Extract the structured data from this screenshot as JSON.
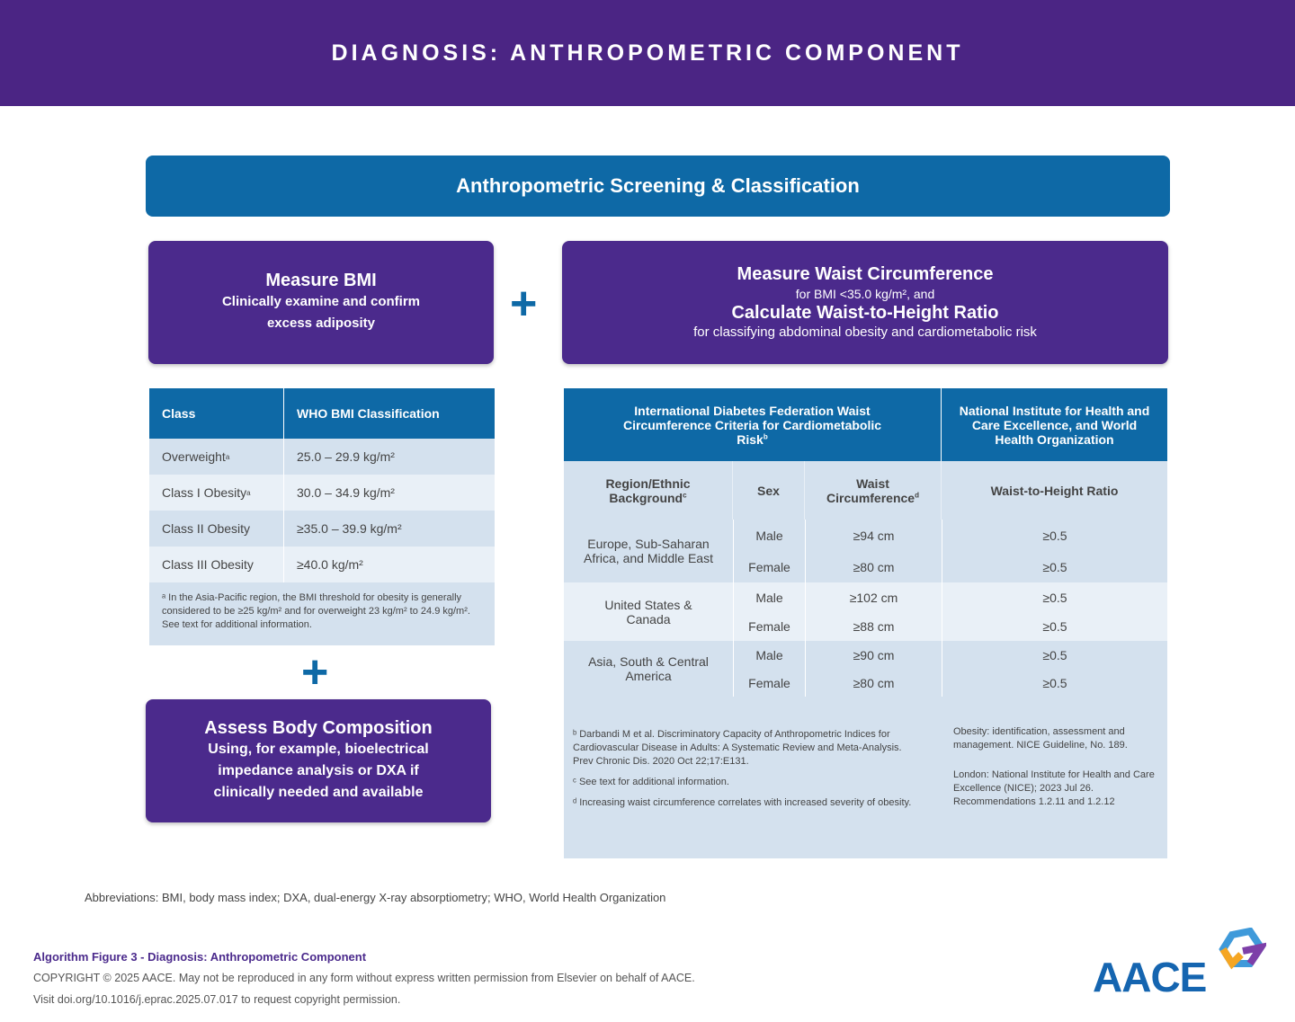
{
  "header": {
    "title": "DIAGNOSIS: ANTHROPOMETRIC COMPONENT"
  },
  "screening": {
    "title": "Anthropometric Screening & Classification"
  },
  "bmi_box": {
    "title": "Measure BMI",
    "line1": "Clinically examine and confirm",
    "line2": "excess adiposity"
  },
  "waist_box": {
    "title": "Measure Waist Circumference",
    "sub1": "for BMI <35.0 kg/m², and",
    "title2": "Calculate Waist-to-Height Ratio",
    "sub2": "for classifying abdominal obesity and cardiometabolic risk"
  },
  "body_box": {
    "title": "Assess Body Composition",
    "line1": "Using, for example, bioelectrical",
    "line2": "impedance analysis or DXA if",
    "line3": "clinically needed and available"
  },
  "plus": "+",
  "bmi_table": {
    "headers": [
      "Class",
      "WHO BMI Classification"
    ],
    "rows": [
      {
        "class": "Overweight",
        "sup": "a",
        "value": "25.0 – 29.9 kg/m²"
      },
      {
        "class": "Class I Obesity",
        "sup": "a",
        "value": "30.0 – 34.9 kg/m²"
      },
      {
        "class": "Class II Obesity",
        "sup": "",
        "value": "≥35.0 – 39.9 kg/m²"
      },
      {
        "class": "Class III Obesity",
        "sup": "",
        "value": "≥40.0 kg/m²"
      }
    ],
    "footnote": "ᵃ In the Asia-Pacific region, the BMI threshold for obesity is generally considered to be ≥25 kg/m² and for overweight 23 kg/m² to 24.9 kg/m². See text for additional information."
  },
  "waist_table": {
    "idf_header": "International Diabetes Federation Waist Circumference Criteria for Cardiometabolic Risk",
    "idf_sup": "b",
    "nice_header": "National Institute for Health and Care Excellence, and World Health Organization",
    "col_region": "Region/Ethnic Background",
    "col_region_sup": "c",
    "col_sex": "Sex",
    "col_waist": "Waist Circumference",
    "col_waist_sup": "d",
    "col_ratio": "Waist-to-Height Ratio",
    "groups": [
      {
        "region": "Europe, Sub-Saharan Africa, and Middle East",
        "rows": [
          {
            "sex": "Male",
            "waist": "≥94 cm",
            "ratio": "≥0.5"
          },
          {
            "sex": "Female",
            "waist": "≥80 cm",
            "ratio": "≥0.5"
          }
        ]
      },
      {
        "region": "United States & Canada",
        "rows": [
          {
            "sex": "Male",
            "waist": "≥102 cm",
            "ratio": "≥0.5"
          },
          {
            "sex": "Female",
            "waist": "≥88 cm",
            "ratio": "≥0.5"
          }
        ]
      },
      {
        "region": "Asia, South & Central America",
        "rows": [
          {
            "sex": "Male",
            "waist": "≥90 cm",
            "ratio": "≥0.5"
          },
          {
            "sex": "Female",
            "waist": "≥80 cm",
            "ratio": "≥0.5"
          }
        ]
      }
    ],
    "footnotes": [
      "ᵇ Darbandi M et al. Discriminatory Capacity of Anthropometric Indices for Cardiovascular Disease in Adults: A Systematic Review and Meta-Analysis. Prev Chronic Dis. 2020 Oct 22;17:E131.",
      "ᶜ See text for additional information.",
      "ᵈ Increasing waist circumference correlates with increased severity of obesity."
    ],
    "nice_refs": [
      "Obesity: identification, assessment and management. NICE Guideline, No. 189.",
      "London: National Institute for Health and Care Excellence (NICE); 2023 Jul 26. Recommendations 1.2.11 and 1.2.12"
    ]
  },
  "abbreviations": "Abbreviations: BMI, body mass index; DXA, dual-energy X-ray absorptiometry; WHO, World Health Organization",
  "footer": {
    "figure": "Algorithm Figure 3 - Diagnosis: Anthropometric Component",
    "copyright": "COPYRIGHT © 2025 AACE. May not be reproduced in any form without express written permission from Elsevier on behalf of AACE.",
    "visit": "Visit doi.org/10.1016/j.eprac.2025.07.017 to request copyright permission.",
    "logo": "AACE"
  },
  "colors": {
    "purple": "#4b2584",
    "blue": "#0e69a6"
  }
}
